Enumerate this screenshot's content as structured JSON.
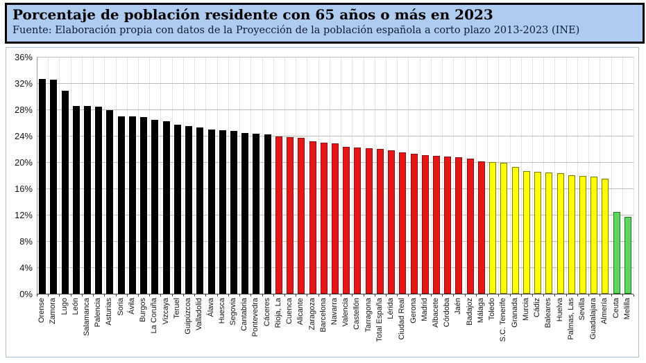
{
  "header": {
    "title": "Porcentaje de población residente con 65 años o más en 2023",
    "source": "Fuente: Elaboración propia con datos de la Proyección de la población española a corto plazo 2013-2023 (INE)"
  },
  "colors": {
    "header_background": "#aecbf0",
    "header_border": "#000000",
    "chart_border": "#a7bfdc",
    "gridline": "#bdbdbd",
    "palette": {
      "black": {
        "fill": "#000000",
        "border": "#000000"
      },
      "red": {
        "fill": "#ec1515",
        "border": "#8c0f0f"
      },
      "yellow": {
        "fill": "#ffff00",
        "border": "#7a7a00"
      },
      "green": {
        "fill": "#5cd65c",
        "border": "#1f7a1f"
      }
    }
  },
  "chart_data": {
    "type": "bar",
    "title": "Porcentaje de población residente con 65 años o más en 2023",
    "xlabel": "",
    "ylabel": "",
    "ylim": [
      0,
      36
    ],
    "ytick_step": 4,
    "ytick_format": "percent",
    "grid": true,
    "legend": false,
    "bars": [
      {
        "label": "Orense",
        "value": 32.6,
        "color": "black"
      },
      {
        "label": "Zamora",
        "value": 32.5,
        "color": "black"
      },
      {
        "label": "Lugo",
        "value": 30.8,
        "color": "black"
      },
      {
        "label": "León",
        "value": 28.5,
        "color": "black"
      },
      {
        "label": "Salamanca",
        "value": 28.5,
        "color": "black"
      },
      {
        "label": "Palencia",
        "value": 28.4,
        "color": "black"
      },
      {
        "label": "Asturias",
        "value": 27.9,
        "color": "black"
      },
      {
        "label": "Soria",
        "value": 27.0,
        "color": "black"
      },
      {
        "label": "Ávila",
        "value": 26.9,
        "color": "black"
      },
      {
        "label": "Burgos",
        "value": 26.8,
        "color": "black"
      },
      {
        "label": "La Coruña",
        "value": 26.4,
        "color": "black"
      },
      {
        "label": "Vizcaya",
        "value": 26.2,
        "color": "black"
      },
      {
        "label": "Teruel",
        "value": 25.7,
        "color": "black"
      },
      {
        "label": "Guipúzcoa",
        "value": 25.5,
        "color": "black"
      },
      {
        "label": "Valladolid",
        "value": 25.3,
        "color": "black"
      },
      {
        "label": "Álava",
        "value": 25.0,
        "color": "black"
      },
      {
        "label": "Huesca",
        "value": 24.8,
        "color": "black"
      },
      {
        "label": "Segovia",
        "value": 24.7,
        "color": "black"
      },
      {
        "label": "Cantabria",
        "value": 24.4,
        "color": "black"
      },
      {
        "label": "Pontevedra",
        "value": 24.3,
        "color": "black"
      },
      {
        "label": "Cáceres",
        "value": 24.2,
        "color": "black"
      },
      {
        "label": "Rioja, La",
        "value": 23.9,
        "color": "red"
      },
      {
        "label": "Cuenca",
        "value": 23.8,
        "color": "red"
      },
      {
        "label": "Alicante",
        "value": 23.7,
        "color": "red"
      },
      {
        "label": "Zaragoza",
        "value": 23.2,
        "color": "red"
      },
      {
        "label": "Barcelona",
        "value": 23.0,
        "color": "red"
      },
      {
        "label": "Navarra",
        "value": 22.8,
        "color": "red"
      },
      {
        "label": "Valencia",
        "value": 22.3,
        "color": "red"
      },
      {
        "label": "Castellón",
        "value": 22.2,
        "color": "red"
      },
      {
        "label": "Tarragona",
        "value": 22.1,
        "color": "red"
      },
      {
        "label": "Total España",
        "value": 22.0,
        "color": "red"
      },
      {
        "label": "Lérida",
        "value": 21.8,
        "color": "red"
      },
      {
        "label": "Ciudad Real",
        "value": 21.5,
        "color": "red"
      },
      {
        "label": "Gerona",
        "value": 21.3,
        "color": "red"
      },
      {
        "label": "Madrid",
        "value": 21.1,
        "color": "red"
      },
      {
        "label": "Albacete",
        "value": 21.0,
        "color": "red"
      },
      {
        "label": "Córdoba",
        "value": 20.8,
        "color": "red"
      },
      {
        "label": "Jaén",
        "value": 20.7,
        "color": "red"
      },
      {
        "label": "Badajoz",
        "value": 20.5,
        "color": "red"
      },
      {
        "label": "Málaga",
        "value": 20.1,
        "color": "red"
      },
      {
        "label": "Toledo",
        "value": 20.0,
        "color": "yellow"
      },
      {
        "label": "S.C. Tenerife",
        "value": 19.9,
        "color": "yellow"
      },
      {
        "label": "Granada",
        "value": 19.3,
        "color": "yellow"
      },
      {
        "label": "Murcia",
        "value": 18.6,
        "color": "yellow"
      },
      {
        "label": "Cádiz",
        "value": 18.5,
        "color": "yellow"
      },
      {
        "label": "Baleares",
        "value": 18.4,
        "color": "yellow"
      },
      {
        "label": "Huelva",
        "value": 18.3,
        "color": "yellow"
      },
      {
        "label": "Palmas, Las",
        "value": 18.0,
        "color": "yellow"
      },
      {
        "label": "Sevilla",
        "value": 17.9,
        "color": "yellow"
      },
      {
        "label": "Guadalajara",
        "value": 17.8,
        "color": "yellow"
      },
      {
        "label": "Almería",
        "value": 17.5,
        "color": "yellow"
      },
      {
        "label": "Ceuta",
        "value": 12.4,
        "color": "green"
      },
      {
        "label": "Melilla",
        "value": 11.7,
        "color": "green"
      }
    ]
  }
}
